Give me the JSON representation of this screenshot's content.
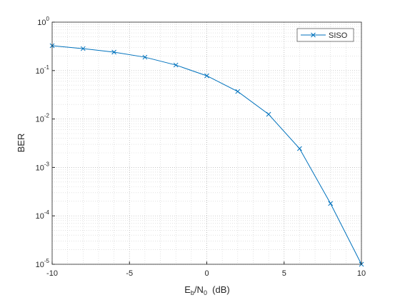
{
  "chart_data": {
    "type": "line",
    "x": [
      -10,
      -8,
      -6,
      -4,
      -2,
      0,
      2,
      4,
      6,
      8,
      10
    ],
    "series": [
      {
        "name": "SISO",
        "color": "#0072bd",
        "marker": "x",
        "values": [
          0.326,
          0.284,
          0.24,
          0.189,
          0.13,
          0.078,
          0.037,
          0.0125,
          0.00245,
          0.00018,
          1e-05
        ]
      }
    ],
    "xlim": [
      -10,
      10
    ],
    "xticks": [
      -10,
      -5,
      0,
      5,
      10
    ],
    "ylim": [
      1e-05,
      1
    ],
    "yscale": "log",
    "yticks": [
      {
        "value": 1e-05,
        "label": "10",
        "exponent": "-5"
      },
      {
        "value": 0.0001,
        "label": "10",
        "exponent": "-4"
      },
      {
        "value": 0.001,
        "label": "10",
        "exponent": "-3"
      },
      {
        "value": 0.01,
        "label": "10",
        "exponent": "-2"
      },
      {
        "value": 0.1,
        "label": "10",
        "exponent": "-1"
      },
      {
        "value": 1,
        "label": "10",
        "exponent": "0"
      }
    ],
    "xlabel": [
      "E",
      "b",
      "/N",
      "0",
      "  (dB)"
    ],
    "ylabel": "BER",
    "grid": true,
    "minor_grid": true,
    "legend": "northeast"
  }
}
